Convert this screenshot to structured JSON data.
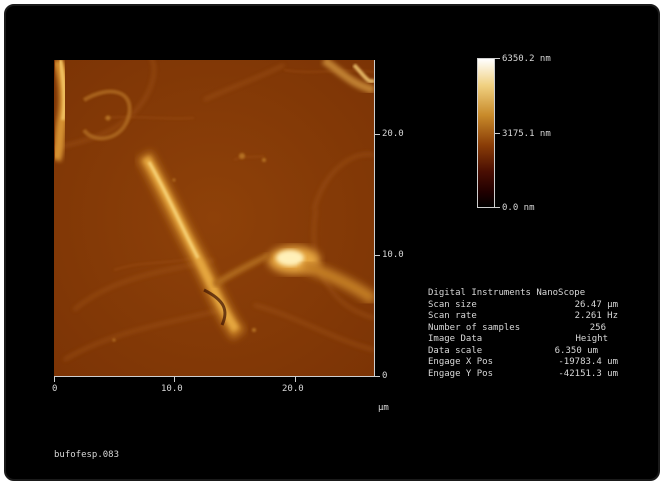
{
  "filename": "bufofesp.083",
  "colorbar": {
    "max_label": "6350.2 nm",
    "mid_label": "3175.1 nm",
    "min_label": "0.0 nm"
  },
  "x_axis": {
    "ticks": [
      "0",
      "10.0",
      "20.0"
    ],
    "unit": "µm"
  },
  "y_axis": {
    "ticks": [
      "20.0",
      "10.0",
      "0"
    ]
  },
  "metadata": {
    "title": "Digital Instruments NanoScope",
    "rows": [
      {
        "key": "Scan size",
        "value": "26.47 µm"
      },
      {
        "key": "Scan rate",
        "value": "2.261 Hz"
      },
      {
        "key": "Number of samples",
        "value": "256"
      },
      {
        "key": "Image Data",
        "value": "Height"
      },
      {
        "key": "Data scale",
        "value": "6.350 um"
      },
      {
        "key": "Engage X Pos",
        "value": "-19783.4 um"
      },
      {
        "key": "Engage Y Pos",
        "value": "-42151.3 um"
      }
    ]
  },
  "colors": {
    "background": "#000000",
    "surface": "#8a3d07",
    "fiber_highlight": "#e8a838"
  }
}
